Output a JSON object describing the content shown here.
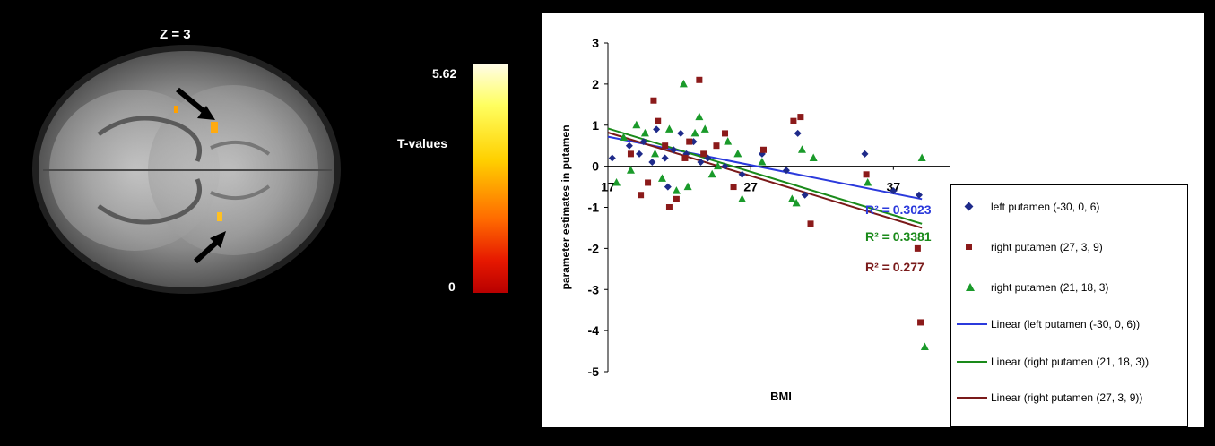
{
  "brain_figure": {
    "slice_label": "Z = 3",
    "colorbar": {
      "max_label": "5.62",
      "title": "T-values",
      "min_label": "0",
      "colors": [
        "#fffce8",
        "#ffff60",
        "#ffd000",
        "#ff6a00",
        "#e61800",
        "#b80000"
      ]
    },
    "arrows": [
      "arrow-upper",
      "arrow-lower"
    ]
  },
  "chart_data": {
    "type": "scatter",
    "xlabel": "BMI",
    "ylabel": "parameter estimates in putamen",
    "xlim": [
      17,
      41
    ],
    "ylim": [
      -5,
      3
    ],
    "x_ticks": [
      "17",
      "27",
      "37"
    ],
    "y_ticks": [
      "3",
      "2",
      "1",
      "0",
      "-1",
      "-2",
      "-3",
      "-4",
      "-5"
    ],
    "series": [
      {
        "name": "left putamen (-30, 0, 6)",
        "marker": "diamond",
        "color": "#1e2a8a",
        "points": [
          [
            17.3,
            0.2
          ],
          [
            18.5,
            0.5
          ],
          [
            19.2,
            0.3
          ],
          [
            19.5,
            0.6
          ],
          [
            20.1,
            0.1
          ],
          [
            20.4,
            0.9
          ],
          [
            21.0,
            0.2
          ],
          [
            21.2,
            -0.5
          ],
          [
            21.6,
            0.4
          ],
          [
            22.1,
            0.8
          ],
          [
            22.5,
            0.3
          ],
          [
            23.0,
            0.6
          ],
          [
            23.5,
            0.1
          ],
          [
            24.0,
            0.2
          ],
          [
            25.2,
            0.0
          ],
          [
            26.4,
            -0.2
          ],
          [
            27.8,
            0.3
          ],
          [
            29.5,
            -0.1
          ],
          [
            30.3,
            0.8
          ],
          [
            30.8,
            -0.7
          ],
          [
            35.0,
            0.3
          ],
          [
            37.0,
            -0.6
          ],
          [
            38.8,
            -0.7
          ]
        ]
      },
      {
        "name": "right putamen (27, 3, 9)",
        "marker": "square",
        "color": "#8b1a1a",
        "points": [
          [
            18.6,
            0.3
          ],
          [
            19.3,
            -0.7
          ],
          [
            19.8,
            -0.4
          ],
          [
            20.2,
            1.6
          ],
          [
            20.5,
            1.1
          ],
          [
            21.0,
            0.5
          ],
          [
            21.3,
            -1.0
          ],
          [
            21.8,
            -0.8
          ],
          [
            22.4,
            0.2
          ],
          [
            22.7,
            0.6
          ],
          [
            23.4,
            2.1
          ],
          [
            23.7,
            0.3
          ],
          [
            24.6,
            0.5
          ],
          [
            25.2,
            0.8
          ],
          [
            25.8,
            -0.5
          ],
          [
            27.9,
            0.4
          ],
          [
            30.0,
            1.1
          ],
          [
            30.5,
            1.2
          ],
          [
            31.2,
            -1.4
          ],
          [
            35.1,
            -0.2
          ],
          [
            38.7,
            -2.0
          ],
          [
            38.9,
            -3.8
          ]
        ]
      },
      {
        "name": "right putamen (21, 18, 3)",
        "marker": "triangle",
        "color": "#1a9a2a",
        "points": [
          [
            17.6,
            -0.4
          ],
          [
            18.1,
            0.7
          ],
          [
            18.6,
            -0.1
          ],
          [
            19.0,
            1.0
          ],
          [
            19.6,
            0.8
          ],
          [
            20.3,
            0.3
          ],
          [
            20.8,
            -0.3
          ],
          [
            21.3,
            0.9
          ],
          [
            21.8,
            -0.6
          ],
          [
            22.3,
            2.0
          ],
          [
            22.6,
            -0.5
          ],
          [
            23.1,
            0.8
          ],
          [
            23.4,
            1.2
          ],
          [
            23.8,
            0.9
          ],
          [
            24.3,
            -0.2
          ],
          [
            24.7,
            0.0
          ],
          [
            25.4,
            0.6
          ],
          [
            26.1,
            0.3
          ],
          [
            26.4,
            -0.8
          ],
          [
            27.8,
            0.1
          ],
          [
            29.9,
            -0.8
          ],
          [
            30.2,
            -0.9
          ],
          [
            30.6,
            0.4
          ],
          [
            31.4,
            0.2
          ],
          [
            35.2,
            -0.4
          ],
          [
            39.0,
            0.2
          ],
          [
            39.2,
            -4.4
          ]
        ]
      }
    ],
    "trendlines": [
      {
        "name": "Linear (left putamen (-30, 0, 6))",
        "color": "#2b3adc",
        "from": [
          17,
          0.72
        ],
        "to": [
          39,
          -0.8
        ],
        "r2_label": "R² = 0.3023"
      },
      {
        "name": "Linear (right putamen (21, 18, 3))",
        "color": "#1a8a1a",
        "from": [
          17,
          0.92
        ],
        "to": [
          39,
          -1.4
        ],
        "r2_label": "R² = 0.3381"
      },
      {
        "name": "Linear (right putamen (27, 3, 9))",
        "color": "#7a1a1a",
        "from": [
          17,
          0.82
        ],
        "to": [
          39,
          -1.5
        ],
        "r2_label": "R² = 0.277"
      }
    ],
    "legend": {
      "placement": "right",
      "items": [
        {
          "kind": "diamond",
          "label": "left putamen (-30, 0, 6)"
        },
        {
          "kind": "square",
          "label": "right putamen (27, 3, 9)"
        },
        {
          "kind": "triangle",
          "label": "right putamen (21, 18, 3)"
        },
        {
          "kind": "line",
          "color": "#2b3adc",
          "label": "Linear (left putamen (-30, 0, 6))"
        },
        {
          "kind": "line",
          "color": "#1a8a1a",
          "label": "Linear (right putamen (21, 18, 3))"
        },
        {
          "kind": "line",
          "color": "#7a1a1a",
          "label": "Linear (right putamen (27, 3, 9))"
        }
      ]
    }
  }
}
